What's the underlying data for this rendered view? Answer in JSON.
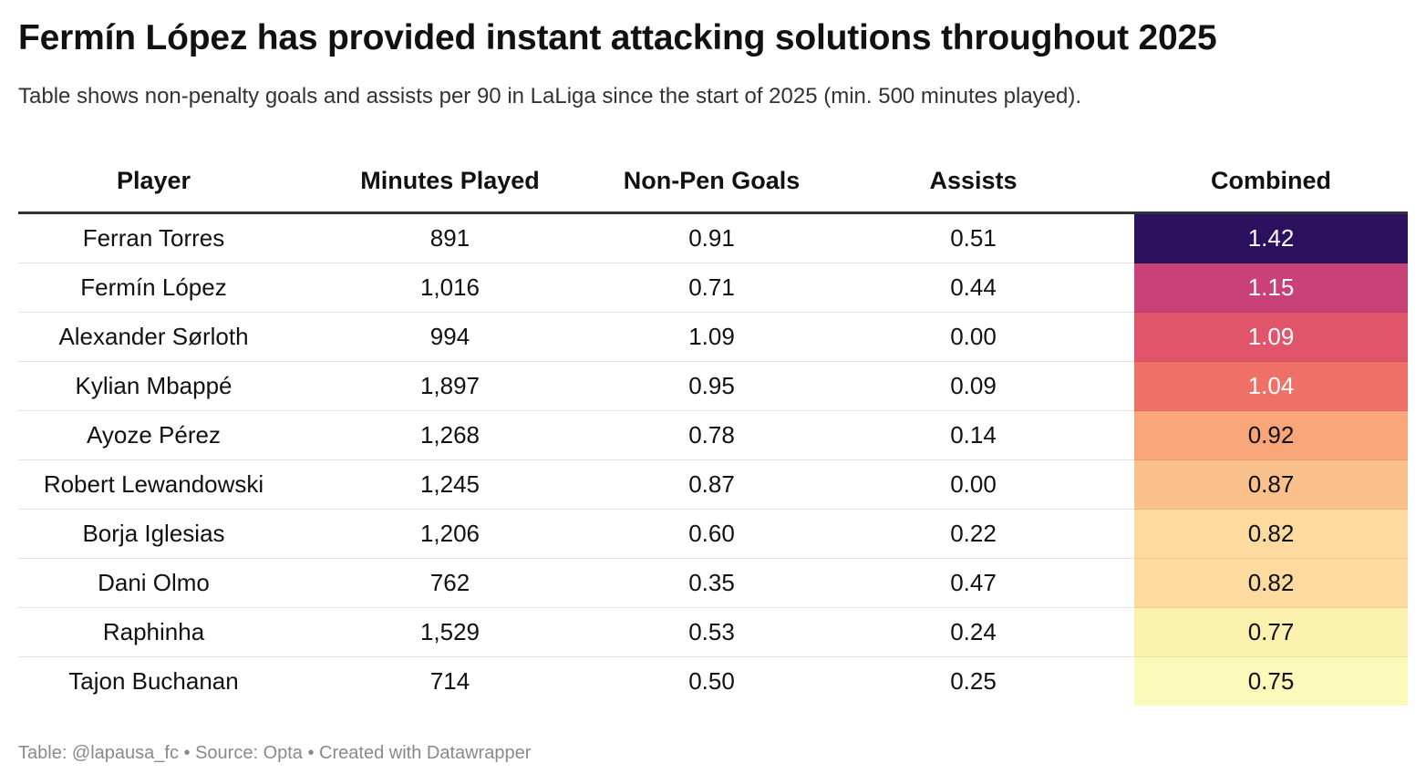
{
  "title": "Fermín López has provided instant attacking solutions throughout 2025",
  "subtitle": "Table shows non-penalty goals and assists per 90 in LaLiga since the start of 2025 (min. 500 minutes played).",
  "footer": "Table: @lapausa_fc • Source: Opta • Created with Datawrapper",
  "chart_data": {
    "type": "table",
    "columns": [
      "Player",
      "Minutes Played",
      "Non-Pen Goals",
      "Assists",
      "Combined"
    ],
    "rows": [
      {
        "player": "Ferran Torres",
        "minutes": "891",
        "goals": "0.91",
        "assists": "0.51",
        "combined": "1.42",
        "combined_bg": "#2c115f",
        "combined_fg": "#ffffff"
      },
      {
        "player": "Fermín López",
        "minutes": "1,016",
        "goals": "0.71",
        "assists": "0.44",
        "combined": "1.15",
        "combined_bg": "#c94277",
        "combined_fg": "#ffffff"
      },
      {
        "player": "Alexander Sørloth",
        "minutes": "994",
        "goals": "1.09",
        "assists": "0.00",
        "combined": "1.09",
        "combined_bg": "#e1556a",
        "combined_fg": "#ffffff"
      },
      {
        "player": "Kylian Mbappé",
        "minutes": "1,897",
        "goals": "0.95",
        "assists": "0.09",
        "combined": "1.04",
        "combined_bg": "#ee7067",
        "combined_fg": "#ffffff"
      },
      {
        "player": "Ayoze Pérez",
        "minutes": "1,268",
        "goals": "0.78",
        "assists": "0.14",
        "combined": "0.92",
        "combined_bg": "#f8a679",
        "combined_fg": "#111111"
      },
      {
        "player": "Robert Lewandowski",
        "minutes": "1,245",
        "goals": "0.87",
        "assists": "0.00",
        "combined": "0.87",
        "combined_bg": "#fbc18d",
        "combined_fg": "#111111"
      },
      {
        "player": "Borja Iglesias",
        "minutes": "1,206",
        "goals": "0.60",
        "assists": "0.22",
        "combined": "0.82",
        "combined_bg": "#fdda9f",
        "combined_fg": "#111111"
      },
      {
        "player": "Dani Olmo",
        "minutes": "762",
        "goals": "0.35",
        "assists": "0.47",
        "combined": "0.82",
        "combined_bg": "#fdda9f",
        "combined_fg": "#111111"
      },
      {
        "player": "Raphinha",
        "minutes": "1,529",
        "goals": "0.53",
        "assists": "0.24",
        "combined": "0.77",
        "combined_bg": "#fcf2b0",
        "combined_fg": "#111111"
      },
      {
        "player": "Tajon Buchanan",
        "minutes": "714",
        "goals": "0.50",
        "assists": "0.25",
        "combined": "0.75",
        "combined_bg": "#fcfabb",
        "combined_fg": "#111111"
      }
    ]
  }
}
